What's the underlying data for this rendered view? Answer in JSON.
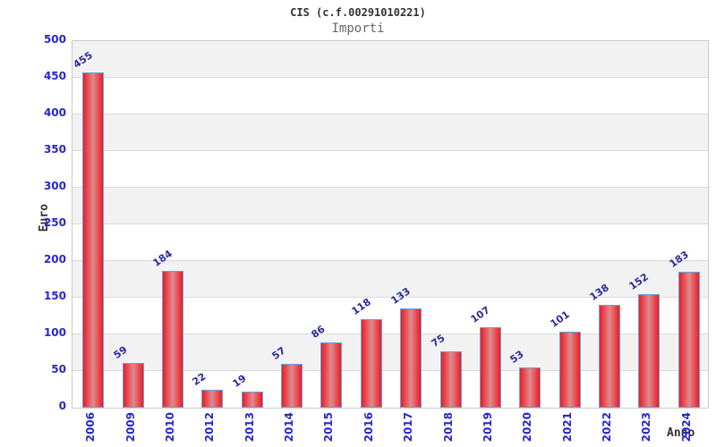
{
  "chart": {
    "title": "CIS (c.f.00291010221)",
    "subtitle": "Importi",
    "ylabel": "Euro",
    "xlabel": "Anno"
  },
  "chart_data": {
    "type": "bar",
    "title": "CIS (c.f.00291010221)",
    "subtitle": "Importi",
    "xlabel": "Anno",
    "ylabel": "Euro",
    "categories": [
      "2006",
      "2009",
      "2010",
      "2012",
      "2013",
      "2014",
      "2015",
      "2016",
      "2017",
      "2018",
      "2019",
      "2020",
      "2021",
      "2022",
      "2023",
      "2024"
    ],
    "values": [
      455,
      59,
      184,
      22,
      19,
      57,
      86,
      118,
      133,
      75,
      107,
      53,
      101,
      138,
      152,
      183
    ],
    "ylim": [
      0,
      500
    ],
    "ytick_step": 50,
    "yticks": [
      0,
      50,
      100,
      150,
      200,
      250,
      300,
      350,
      400,
      450,
      500
    ],
    "grid": true,
    "legend": false,
    "bands_alternating": true,
    "value_labels_rotated": true,
    "xticks_rotated_90": true,
    "colors": {
      "bar_edge": "#ed1c24",
      "bar_center": "#de8a8e",
      "bar_border": "#64a3e2",
      "tick_label": "#2626cf",
      "value_label": "#29299d",
      "band_gray": "#f2f2f2",
      "band_white": "#ffffff",
      "grid_line": "#d9d9d9",
      "plot_border": "#c9c9c9",
      "title": "#333333",
      "subtitle": "#666666"
    }
  }
}
